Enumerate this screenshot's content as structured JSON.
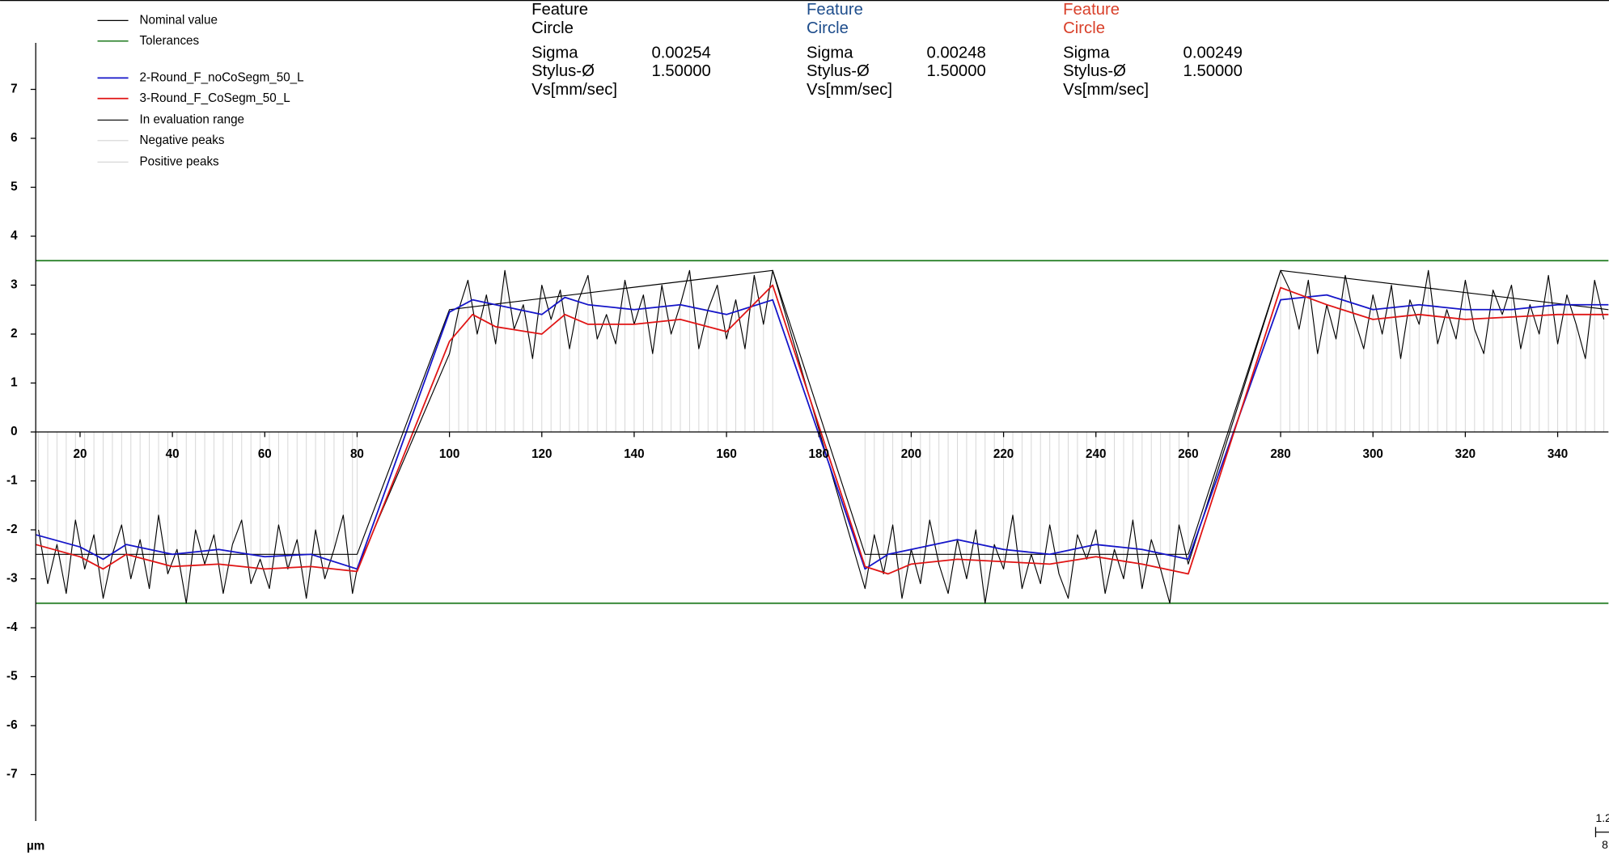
{
  "chart_data": {
    "type": "line",
    "xlim": [
      10.4,
      351
    ],
    "ylim": [
      -7.95,
      7.95
    ],
    "xticks": [
      20,
      40,
      60,
      80,
      100,
      120,
      140,
      160,
      180,
      200,
      220,
      240,
      260,
      280,
      300,
      320,
      340
    ],
    "yticks": [
      -7,
      -6,
      -5,
      -4,
      -3,
      -2,
      -1,
      0,
      1,
      2,
      3,
      4,
      5,
      6,
      7
    ],
    "unit_label": "µm",
    "corner_labels": [
      "1.2",
      "8"
    ],
    "nominal": {
      "name": "Nominal value",
      "color": "#000000",
      "x": [
        10.4,
        80,
        100,
        170,
        190,
        260,
        280,
        351
      ],
      "values": [
        -2.5,
        -2.5,
        2.5,
        3.3,
        -2.5,
        -2.5,
        3.3,
        2.5
      ]
    },
    "tolerances": {
      "name": "Tolerances",
      "color": "#1e7a1e",
      "values": [
        3.5,
        -3.5
      ]
    },
    "series": [
      {
        "name": "2-Round_F_noCoSegm_50_L",
        "color": "#1414c8",
        "x": [
          10.4,
          20,
          25,
          30,
          40,
          50,
          60,
          70,
          80,
          100,
          105,
          110,
          120,
          125,
          130,
          140,
          150,
          160,
          170,
          190,
          195,
          200,
          210,
          220,
          230,
          240,
          250,
          260,
          280,
          290,
          300,
          310,
          320,
          330,
          340,
          351
        ],
        "values": [
          -2.1,
          -2.35,
          -2.6,
          -2.3,
          -2.5,
          -2.4,
          -2.55,
          -2.5,
          -2.8,
          2.45,
          2.7,
          2.6,
          2.4,
          2.75,
          2.6,
          2.5,
          2.6,
          2.4,
          2.7,
          -2.8,
          -2.5,
          -2.4,
          -2.2,
          -2.4,
          -2.5,
          -2.3,
          -2.4,
          -2.6,
          2.7,
          2.8,
          2.5,
          2.6,
          2.5,
          2.5,
          2.6,
          2.6
        ]
      },
      {
        "name": "3-Round_F_CoSegm_50_L",
        "color": "#e01414",
        "x": [
          10.4,
          20,
          25,
          30,
          40,
          50,
          60,
          70,
          80,
          100,
          105,
          110,
          120,
          125,
          130,
          140,
          150,
          160,
          170,
          190,
          195,
          200,
          210,
          220,
          230,
          240,
          250,
          260,
          280,
          290,
          300,
          310,
          320,
          330,
          340,
          351
        ],
        "values": [
          -2.3,
          -2.55,
          -2.8,
          -2.5,
          -2.75,
          -2.7,
          -2.8,
          -2.75,
          -2.85,
          1.85,
          2.4,
          2.15,
          2.0,
          2.4,
          2.2,
          2.2,
          2.3,
          2.05,
          3.0,
          -2.75,
          -2.9,
          -2.7,
          -2.6,
          -2.65,
          -2.7,
          -2.55,
          -2.7,
          -2.9,
          2.95,
          2.6,
          2.3,
          2.4,
          2.3,
          2.35,
          2.4,
          2.4
        ]
      },
      {
        "name": "In evaluation range",
        "color": "#000000",
        "x": [
          11,
          13,
          15,
          17,
          19,
          21,
          23,
          25,
          27,
          29,
          31,
          33,
          35,
          37,
          39,
          41,
          43,
          45,
          47,
          49,
          51,
          53,
          55,
          57,
          59,
          61,
          63,
          65,
          67,
          69,
          71,
          73,
          75,
          77,
          79,
          80,
          100,
          102,
          104,
          106,
          108,
          110,
          112,
          114,
          116,
          118,
          120,
          122,
          124,
          126,
          128,
          130,
          132,
          134,
          136,
          138,
          140,
          142,
          144,
          146,
          148,
          150,
          152,
          154,
          156,
          158,
          160,
          162,
          164,
          166,
          168,
          170,
          190,
          192,
          194,
          196,
          198,
          200,
          202,
          204,
          206,
          208,
          210,
          212,
          214,
          216,
          218,
          220,
          222,
          224,
          226,
          228,
          230,
          232,
          234,
          236,
          238,
          240,
          242,
          244,
          246,
          248,
          250,
          252,
          254,
          256,
          258,
          260,
          280,
          282,
          284,
          286,
          288,
          290,
          292,
          294,
          296,
          298,
          300,
          302,
          304,
          306,
          308,
          310,
          312,
          314,
          316,
          318,
          320,
          322,
          324,
          326,
          328,
          330,
          332,
          334,
          336,
          338,
          340,
          342,
          344,
          346,
          348,
          350
        ],
        "values": [
          -2.0,
          -3.1,
          -2.3,
          -3.3,
          -1.8,
          -2.8,
          -2.1,
          -3.4,
          -2.5,
          -1.9,
          -3.0,
          -2.2,
          -3.2,
          -1.7,
          -2.9,
          -2.4,
          -3.5,
          -2.0,
          -2.7,
          -2.1,
          -3.3,
          -2.3,
          -1.8,
          -3.1,
          -2.6,
          -3.2,
          -1.9,
          -2.8,
          -2.2,
          -3.4,
          -2.0,
          -3.0,
          -2.4,
          -1.7,
          -3.3,
          -2.8,
          1.6,
          2.5,
          3.1,
          2.0,
          2.8,
          1.8,
          3.3,
          2.1,
          2.6,
          1.5,
          3.0,
          2.3,
          2.9,
          1.7,
          2.7,
          3.2,
          1.9,
          2.4,
          1.8,
          3.1,
          2.2,
          2.8,
          1.6,
          3.0,
          2.0,
          2.6,
          3.3,
          1.7,
          2.5,
          3.0,
          1.9,
          2.7,
          1.7,
          3.2,
          2.2,
          3.3,
          -3.2,
          -2.1,
          -2.9,
          -1.9,
          -3.4,
          -2.4,
          -3.1,
          -1.8,
          -2.7,
          -3.3,
          -2.2,
          -3.0,
          -2.0,
          -3.5,
          -2.3,
          -2.8,
          -1.7,
          -3.2,
          -2.5,
          -3.1,
          -1.9,
          -2.9,
          -3.4,
          -2.1,
          -2.6,
          -2.0,
          -3.3,
          -2.4,
          -3.0,
          -1.8,
          -3.2,
          -2.2,
          -2.8,
          -3.5,
          -1.9,
          -2.7,
          3.3,
          2.9,
          2.1,
          3.1,
          1.6,
          2.6,
          1.9,
          3.2,
          2.3,
          1.7,
          2.8,
          2.0,
          3.0,
          1.5,
          2.7,
          2.2,
          3.3,
          1.8,
          2.5,
          1.9,
          3.1,
          2.1,
          1.6,
          2.9,
          2.4,
          3.0,
          1.7,
          2.6,
          2.0,
          3.2,
          1.8,
          2.8,
          2.2,
          1.5,
          3.1,
          2.3
        ]
      }
    ],
    "peaks": [
      {
        "name": "Negative peaks",
        "color": "#d8d8d8"
      },
      {
        "name": "Positive peaks",
        "color": "#d8d8d8"
      }
    ],
    "info_blocks": [
      {
        "color": "#000000",
        "lines": [
          "Feature",
          "Circle"
        ],
        "rows": [
          [
            "Sigma",
            "0.00254"
          ],
          [
            "Stylus-Ø",
            "1.50000"
          ],
          [
            "Vs[mm/sec]"
          ]
        ]
      },
      {
        "color": "#1f4e8c",
        "lines": [
          "Feature",
          "Circle"
        ],
        "rows": [
          [
            "Sigma",
            "0.00248"
          ],
          [
            "Stylus-Ø",
            "1.50000"
          ],
          [
            "Vs[mm/sec]"
          ]
        ]
      },
      {
        "color": "#d9412b",
        "lines": [
          "Feature",
          "Circle"
        ],
        "rows": [
          [
            "Sigma",
            "0.00249"
          ],
          [
            "Stylus-Ø",
            "1.50000"
          ],
          [
            "Vs[mm/sec]"
          ]
        ]
      }
    ]
  }
}
